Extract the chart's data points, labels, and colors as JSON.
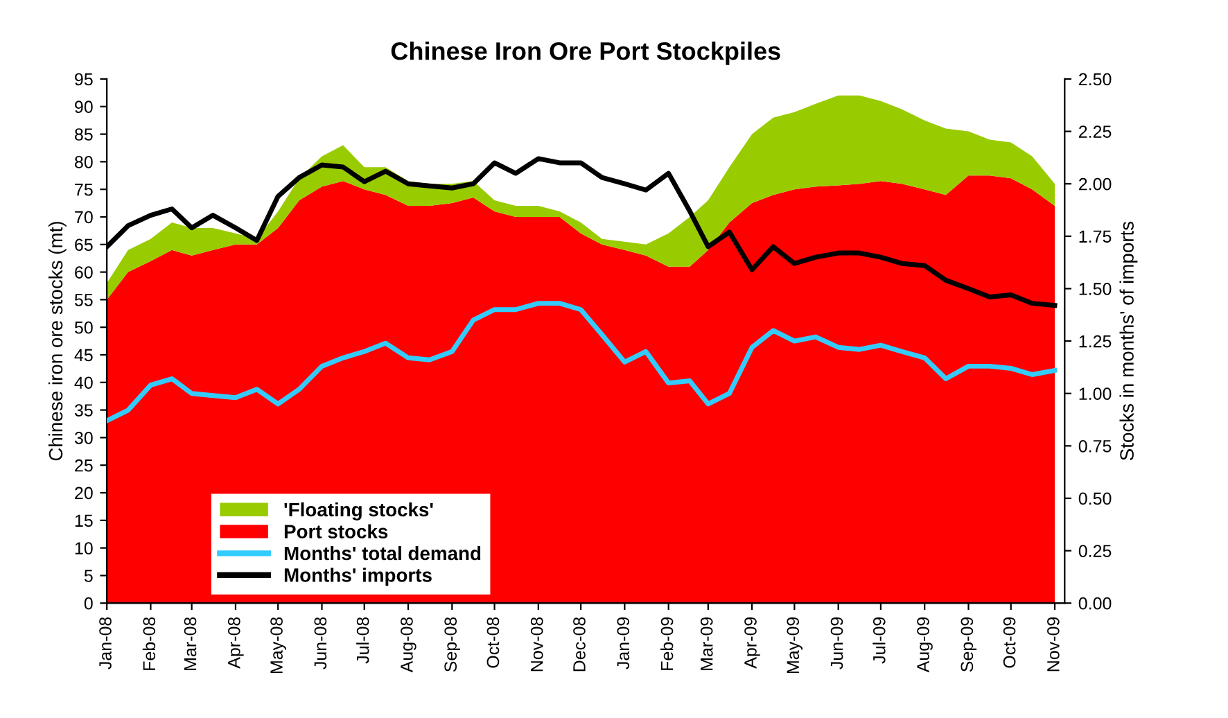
{
  "chart_data": {
    "type": "area",
    "title": "Chinese Iron Ore Port Stockpiles",
    "ylabel": "Chinese iron ore stocks (mt)",
    "y2label": "Stocks in months' of imports",
    "x": [
      "2008-01-01",
      "2008-01-16",
      "2008-02-01",
      "2008-02-16",
      "2008-03-01",
      "2008-03-16",
      "2008-04-01",
      "2008-04-16",
      "2008-05-01",
      "2008-05-16",
      "2008-06-01",
      "2008-06-16",
      "2008-07-01",
      "2008-07-16",
      "2008-08-01",
      "2008-08-16",
      "2008-09-01",
      "2008-09-16",
      "2008-10-01",
      "2008-10-16",
      "2008-11-01",
      "2008-11-16",
      "2008-12-01",
      "2008-12-16",
      "2009-01-01",
      "2009-01-16",
      "2009-02-01",
      "2009-02-16",
      "2009-03-01",
      "2009-03-16",
      "2009-04-01",
      "2009-04-16",
      "2009-05-01",
      "2009-05-16",
      "2009-06-01",
      "2009-06-16",
      "2009-07-01",
      "2009-07-16",
      "2009-08-01",
      "2009-08-16",
      "2009-09-01",
      "2009-09-16",
      "2009-10-01",
      "2009-10-16",
      "2009-11-01"
    ],
    "stacked": true,
    "series": [
      {
        "name": "Port stocks",
        "color": "#ff0000",
        "values": [
          55,
          60,
          62,
          64,
          63,
          64,
          65,
          65,
          68,
          73,
          75.5,
          76.5,
          75,
          74,
          72,
          72,
          72.5,
          73.5,
          71,
          70,
          70,
          70,
          67,
          65,
          64,
          63,
          61,
          61,
          64,
          69,
          72.5,
          74,
          75,
          75.5,
          75.7,
          76,
          76.5,
          76,
          75,
          74,
          77.5,
          77.5,
          77,
          75,
          72
        ]
      },
      {
        "name": "'Floating stocks'",
        "color": "#99cc00",
        "values": [
          3,
          4,
          4,
          5,
          5,
          4,
          2,
          1,
          3,
          4,
          5.5,
          6.5,
          4,
          5,
          4.5,
          4,
          3.5,
          3,
          2,
          2,
          2,
          1,
          2,
          1,
          1.5,
          2,
          6,
          9,
          9,
          10,
          12.5,
          14,
          14,
          15,
          16.3,
          16,
          14.5,
          13.5,
          12.5,
          12,
          8,
          6.5,
          6.5,
          6,
          4
        ]
      },
      {
        "name": "Months' total demand",
        "type": "line",
        "axis": "y2",
        "color": "#33ccff",
        "values": [
          0.87,
          0.92,
          1.04,
          1.07,
          1.0,
          0.99,
          0.98,
          1.02,
          0.95,
          1.02,
          1.13,
          1.17,
          1.2,
          1.24,
          1.17,
          1.16,
          1.2,
          1.35,
          1.4,
          1.4,
          1.43,
          1.43,
          1.4,
          1.28,
          1.15,
          1.2,
          1.05,
          1.06,
          0.95,
          1.0,
          1.22,
          1.3,
          1.25,
          1.27,
          1.22,
          1.21,
          1.23,
          1.2,
          1.17,
          1.07,
          1.13,
          1.13,
          1.12,
          1.09,
          1.11
        ]
      },
      {
        "name": "Months' imports",
        "type": "line",
        "axis": "y2",
        "color": "#000000",
        "values": [
          1.7,
          1.8,
          1.85,
          1.88,
          1.79,
          1.85,
          1.79,
          1.73,
          1.94,
          2.03,
          2.09,
          2.08,
          2.01,
          2.06,
          2.0,
          1.99,
          1.98,
          2.0,
          2.1,
          2.05,
          2.12,
          2.1,
          2.1,
          2.03,
          2.0,
          1.97,
          2.05,
          1.87,
          1.7,
          1.77,
          1.59,
          1.7,
          1.62,
          1.65,
          1.67,
          1.67,
          1.65,
          1.62,
          1.61,
          1.54,
          1.5,
          1.46,
          1.47,
          1.43,
          1.42
        ]
      }
    ],
    "xlim": [
      "2008-01-01",
      "2009-11-08"
    ],
    "xticks": [
      {
        "value": "2008-01-01",
        "label": "Jan-08"
      },
      {
        "value": "2008-02-01",
        "label": "Feb-08"
      },
      {
        "value": "2008-03-01",
        "label": "Mar-08"
      },
      {
        "value": "2008-04-01",
        "label": "Apr-08"
      },
      {
        "value": "2008-05-01",
        "label": "May-08"
      },
      {
        "value": "2008-06-01",
        "label": "Jun-08"
      },
      {
        "value": "2008-07-01",
        "label": "Jul-08"
      },
      {
        "value": "2008-08-01",
        "label": "Aug-08"
      },
      {
        "value": "2008-09-01",
        "label": "Sep-08"
      },
      {
        "value": "2008-10-01",
        "label": "Oct-08"
      },
      {
        "value": "2008-11-01",
        "label": "Nov-08"
      },
      {
        "value": "2008-12-01",
        "label": "Dec-08"
      },
      {
        "value": "2009-01-01",
        "label": "Jan-09"
      },
      {
        "value": "2009-02-01",
        "label": "Feb-09"
      },
      {
        "value": "2009-03-01",
        "label": "Mar-09"
      },
      {
        "value": "2009-04-01",
        "label": "Apr-09"
      },
      {
        "value": "2009-05-01",
        "label": "May-09"
      },
      {
        "value": "2009-06-01",
        "label": "Jun-09"
      },
      {
        "value": "2009-07-01",
        "label": "Jul-09"
      },
      {
        "value": "2009-08-01",
        "label": "Aug-09"
      },
      {
        "value": "2009-09-01",
        "label": "Sep-09"
      },
      {
        "value": "2009-10-01",
        "label": "Oct-09"
      },
      {
        "value": "2009-11-01",
        "label": "Nov-09"
      }
    ],
    "ylim": [
      0,
      95
    ],
    "yticks": [
      0,
      5,
      10,
      15,
      20,
      25,
      30,
      35,
      40,
      45,
      50,
      55,
      60,
      65,
      70,
      75,
      80,
      85,
      90,
      95
    ],
    "y2lim": [
      0,
      2.5
    ],
    "y2ticks": [
      {
        "value": 0,
        "label": "0.00"
      },
      {
        "value": 0.25,
        "label": "0.25"
      },
      {
        "value": 0.5,
        "label": "0.50"
      },
      {
        "value": 0.75,
        "label": "0.75"
      },
      {
        "value": 1,
        "label": "1.00"
      },
      {
        "value": 1.25,
        "label": "1.25"
      },
      {
        "value": 1.5,
        "label": "1.50"
      },
      {
        "value": 1.75,
        "label": "1.75"
      },
      {
        "value": 2,
        "label": "2.00"
      },
      {
        "value": 2.25,
        "label": "2.25"
      },
      {
        "value": 2.5,
        "label": "2.50"
      }
    ],
    "grid": false,
    "legend": "bottom left",
    "line_style": "solid",
    "marker": "none"
  }
}
